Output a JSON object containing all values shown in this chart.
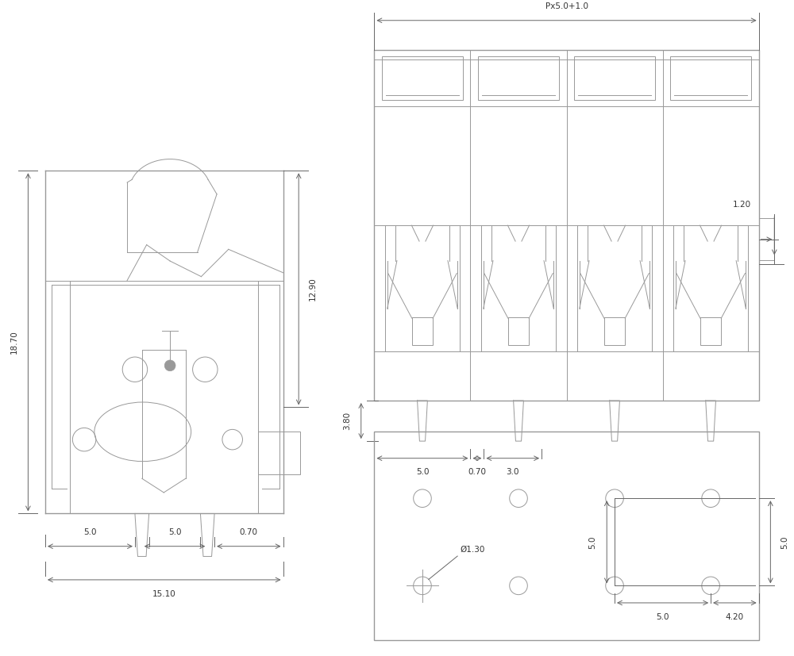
{
  "bg_color": "#ffffff",
  "line_color": "#999999",
  "dim_color": "#666666",
  "text_color": "#333333",
  "lw_main": 1.0,
  "lw_inner": 0.7,
  "lw_dim": 0.7,
  "fontsize_dim": 7.5
}
